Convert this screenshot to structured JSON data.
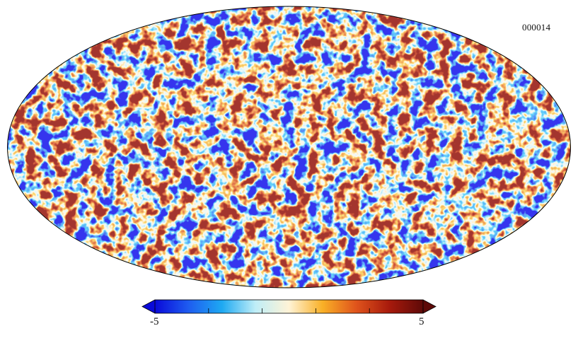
{
  "map_id": "000014",
  "colorbar": {
    "min_label": "-5",
    "max_label": "5",
    "min_value": -5,
    "max_value": 5,
    "colors": [
      "#0a0ad9",
      "#1e5cf0",
      "#1ea9f2",
      "#bfeef7",
      "#fff3d6",
      "#f9b026",
      "#e0541c",
      "#a71a0c",
      "#5e0a08"
    ]
  },
  "projection": "mollweide"
}
